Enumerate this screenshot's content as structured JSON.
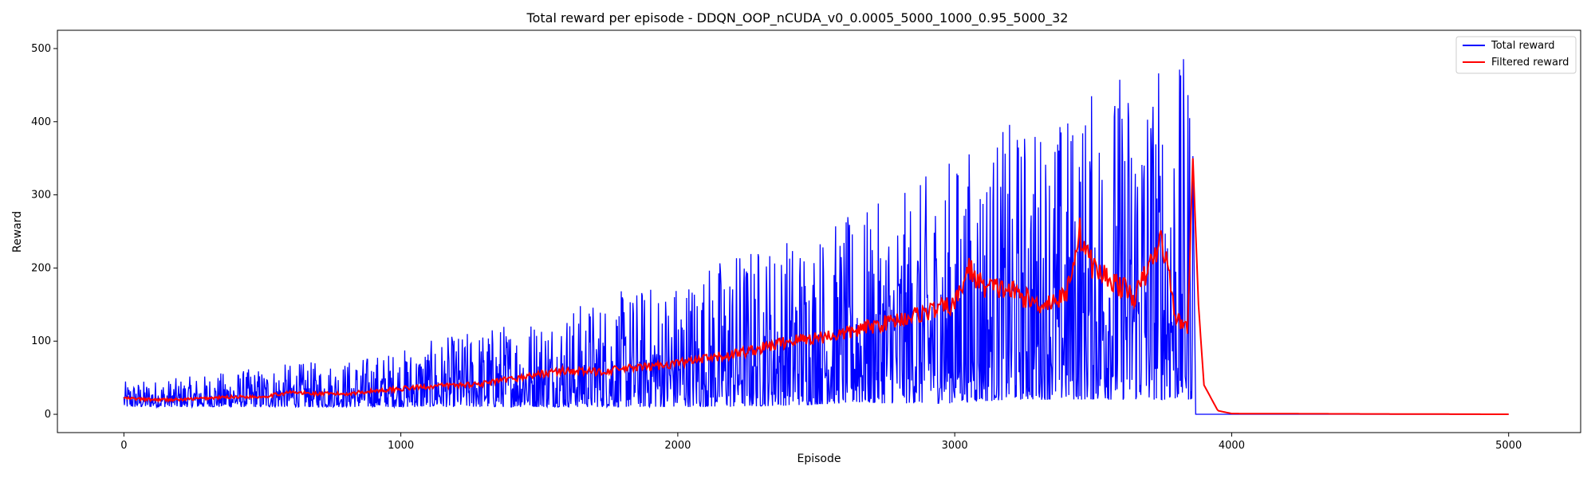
{
  "chart_data": {
    "type": "line",
    "title": "Total reward per episode - DDQN_OOP_nCUDA_v0_0.0005_5000_1000_0.95_5000_32",
    "xlabel": "Episode",
    "ylabel": "Reward",
    "xlim": [
      -240,
      5260
    ],
    "ylim": [
      -25,
      525
    ],
    "x_ticks": [
      0,
      1000,
      2000,
      3000,
      4000,
      5000
    ],
    "y_ticks": [
      0,
      100,
      200,
      300,
      400,
      500
    ],
    "legend_position": "top-right",
    "grid": false,
    "series": [
      {
        "name": "Total reward",
        "color": "#0000ff",
        "envelope": {
          "x": [
            0,
            200,
            400,
            600,
            800,
            1000,
            1200,
            1400,
            1600,
            1800,
            2000,
            2200,
            2400,
            2600,
            2800,
            3000,
            3200,
            3400,
            3600,
            3700,
            3800,
            3860
          ],
          "upper": [
            45,
            50,
            60,
            70,
            75,
            90,
            110,
            130,
            150,
            170,
            190,
            230,
            250,
            270,
            300,
            360,
            400,
            420,
            480,
            500,
            480,
            500
          ],
          "lower": [
            10,
            10,
            10,
            10,
            10,
            10,
            10,
            10,
            10,
            10,
            10,
            10,
            12,
            15,
            15,
            15,
            20,
            20,
            20,
            20,
            20,
            20
          ]
        },
        "after_x": 3870,
        "after_value": 0
      },
      {
        "name": "Filtered reward",
        "color": "#ff0000",
        "x": [
          0,
          100,
          200,
          300,
          400,
          500,
          600,
          700,
          800,
          900,
          1000,
          1100,
          1200,
          1300,
          1400,
          1500,
          1600,
          1700,
          1800,
          1900,
          2000,
          2100,
          2200,
          2300,
          2400,
          2500,
          2600,
          2700,
          2800,
          2900,
          3000,
          3050,
          3100,
          3200,
          3300,
          3400,
          3450,
          3500,
          3600,
          3650,
          3700,
          3750,
          3800,
          3840,
          3860,
          3880,
          3900,
          3950,
          4000,
          5000
        ],
        "values": [
          22,
          20,
          20,
          22,
          24,
          24,
          30,
          28,
          28,
          32,
          35,
          38,
          40,
          42,
          48,
          55,
          60,
          58,
          62,
          65,
          70,
          75,
          82,
          90,
          100,
          105,
          110,
          120,
          130,
          140,
          150,
          200,
          175,
          170,
          150,
          160,
          250,
          200,
          175,
          160,
          200,
          240,
          130,
          120,
          350,
          150,
          40,
          5,
          1,
          0
        ]
      }
    ]
  }
}
